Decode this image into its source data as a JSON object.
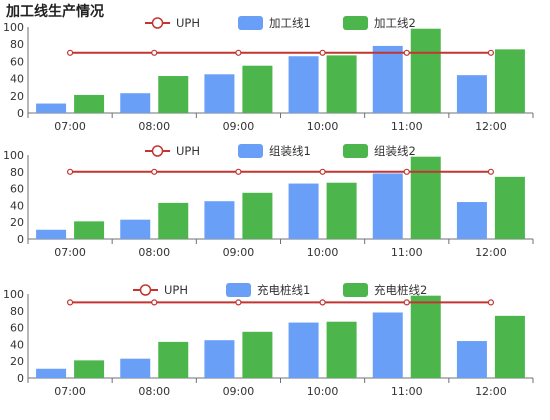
{
  "title": "加工线生产情况",
  "colors": {
    "uph": "#c23531",
    "line1": "#6a9ff8",
    "line2": "#4cb64c",
    "axis": "#6e7079",
    "grid": "#e6e6e6"
  },
  "chart_data": [
    {
      "type": "bar",
      "categories": [
        "07:00",
        "08:00",
        "09:00",
        "10:00",
        "11:00",
        "12:00"
      ],
      "ylim": [
        0,
        100
      ],
      "yticks": [
        0,
        20,
        40,
        60,
        80,
        100
      ],
      "legend_position": "top",
      "series": [
        {
          "name": "UPH",
          "type": "line",
          "values": [
            70,
            70,
            70,
            70,
            70,
            70
          ]
        },
        {
          "name": "加工线1",
          "type": "bar",
          "values": [
            11,
            23,
            45,
            66,
            78,
            44
          ]
        },
        {
          "name": "加工线2",
          "type": "bar",
          "values": [
            21,
            43,
            55,
            67,
            98,
            74
          ]
        }
      ]
    },
    {
      "type": "bar",
      "categories": [
        "07:00",
        "08:00",
        "09:00",
        "10:00",
        "11:00",
        "12:00"
      ],
      "ylim": [
        0,
        100
      ],
      "yticks": [
        0,
        20,
        40,
        60,
        80,
        100
      ],
      "legend_position": "top",
      "series": [
        {
          "name": "UPH",
          "type": "line",
          "values": [
            80,
            80,
            80,
            80,
            80,
            80
          ]
        },
        {
          "name": "组装线1",
          "type": "bar",
          "values": [
            11,
            23,
            45,
            66,
            78,
            44
          ]
        },
        {
          "name": "组装线2",
          "type": "bar",
          "values": [
            21,
            43,
            55,
            67,
            98,
            74
          ]
        }
      ]
    },
    {
      "type": "bar",
      "categories": [
        "07:00",
        "08:00",
        "09:00",
        "10:00",
        "11:00",
        "12:00"
      ],
      "ylim": [
        0,
        100
      ],
      "yticks": [
        0,
        20,
        40,
        60,
        80,
        100
      ],
      "legend_position": "top",
      "series": [
        {
          "name": "UPH",
          "type": "line",
          "values": [
            90,
            90,
            90,
            90,
            90,
            90
          ]
        },
        {
          "name": "充电桩线1",
          "type": "bar",
          "values": [
            11,
            23,
            45,
            66,
            78,
            44
          ]
        },
        {
          "name": "充电桩线2",
          "type": "bar",
          "values": [
            21,
            43,
            55,
            67,
            98,
            74
          ]
        }
      ]
    }
  ]
}
